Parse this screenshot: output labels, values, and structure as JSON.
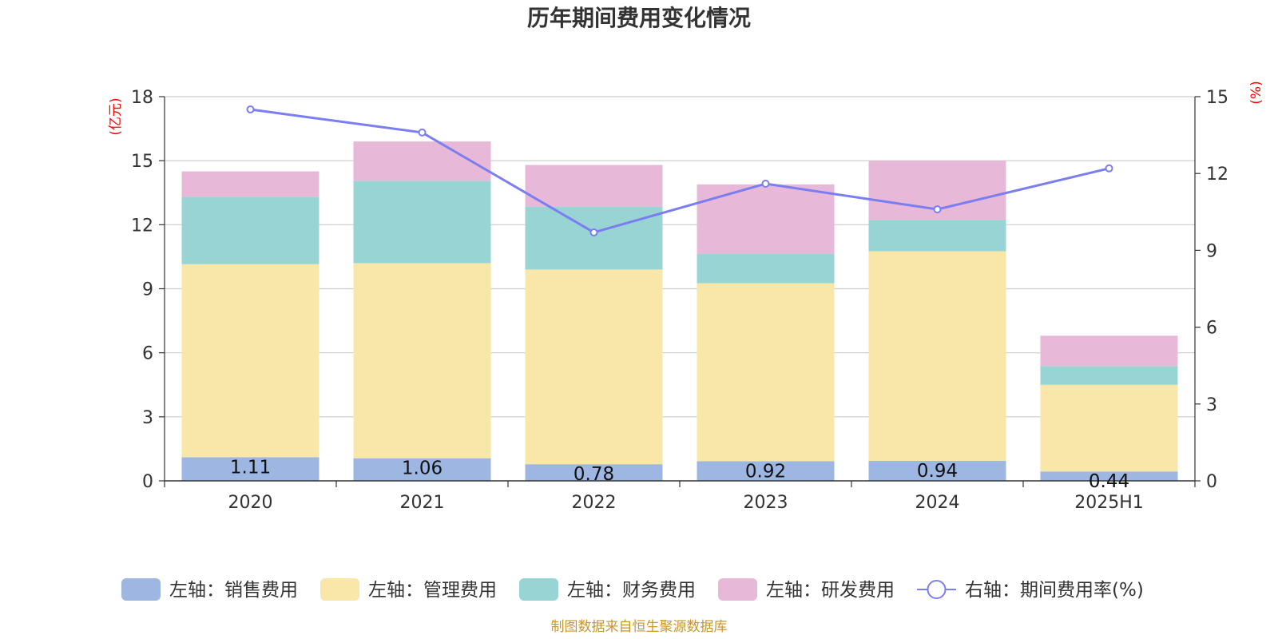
{
  "title": "历年期间费用变化情况",
  "source": "制图数据来自恒生聚源数据库",
  "chart_data": {
    "type": "bar",
    "stacked": true,
    "categories": [
      "2020",
      "2021",
      "2022",
      "2023",
      "2024",
      "2025H1"
    ],
    "left_axis": {
      "unit": "(亿元)",
      "ticks": [
        "0",
        "3",
        "6",
        "9",
        "12",
        "15",
        "18"
      ],
      "range": [
        0,
        18
      ]
    },
    "right_axis": {
      "unit": "(%)",
      "ticks": [
        "0",
        "3",
        "6",
        "9",
        "12",
        "15"
      ],
      "range": [
        0,
        15
      ]
    },
    "grid": true,
    "legend_position": "bottom",
    "series": [
      {
        "name": "左轴：销售费用",
        "axis": "left",
        "color": "#9db6e2",
        "values": [
          1.11,
          1.06,
          0.78,
          0.92,
          0.94,
          0.44
        ],
        "data_labels": [
          "1.11",
          "1.06",
          "0.78",
          "0.92",
          "0.94",
          "0.44"
        ]
      },
      {
        "name": "左轴：管理费用",
        "axis": "left",
        "color": "#f8e7a8",
        "values": [
          9.04,
          9.14,
          9.12,
          8.34,
          9.82,
          4.06
        ]
      },
      {
        "name": "左轴：财务费用",
        "axis": "left",
        "color": "#98d4d4",
        "values": [
          3.16,
          3.86,
          2.95,
          1.38,
          1.44,
          0.88
        ]
      },
      {
        "name": "左轴：研发费用",
        "axis": "left",
        "color": "#e8b8d8",
        "values": [
          1.19,
          1.84,
          1.95,
          3.25,
          2.8,
          1.42
        ]
      },
      {
        "name": "右轴：期间费用率(%)",
        "axis": "right",
        "type": "line",
        "color": "#7b7ef0",
        "values": [
          14.5,
          13.6,
          9.7,
          11.6,
          10.6,
          12.2
        ]
      }
    ]
  }
}
